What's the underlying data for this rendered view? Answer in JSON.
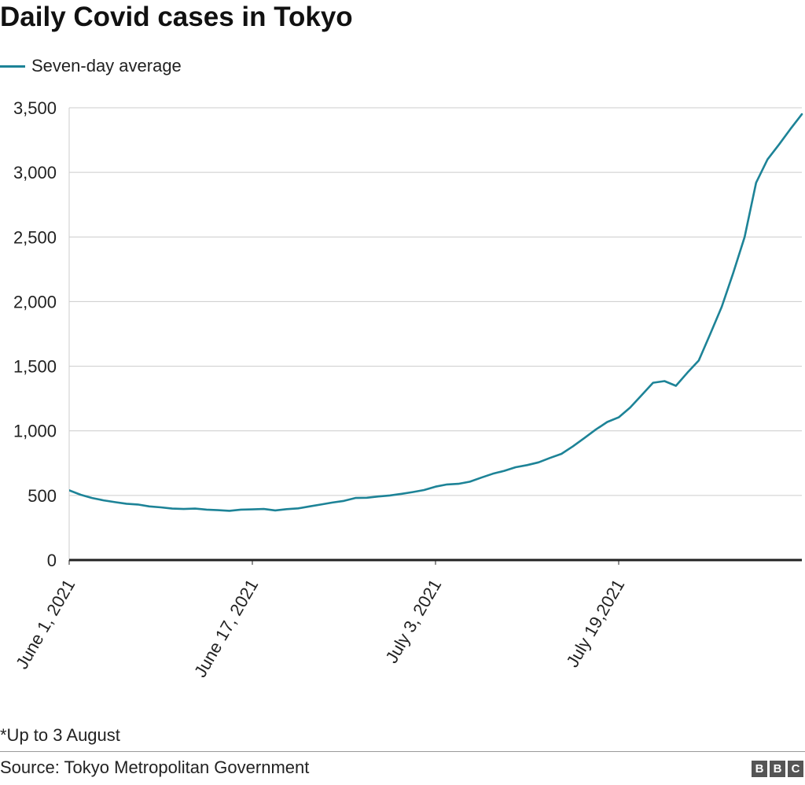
{
  "title": "Daily Covid cases in Tokyo",
  "legend": {
    "label": "Seven-day average",
    "color": "#1d8397"
  },
  "footnote": "*Up to 3 August",
  "source": "Source: Tokyo Metropolitan Government",
  "logo": [
    "B",
    "B",
    "C"
  ],
  "chart_data": {
    "type": "line",
    "title": "Daily Covid cases in Tokyo",
    "xlabel": "",
    "ylabel": "",
    "ylim": [
      0,
      3500
    ],
    "grid": true,
    "legend_position": "top-left",
    "y_ticks": [
      0,
      500,
      1000,
      1500,
      2000,
      2500,
      3000,
      3500
    ],
    "y_tick_labels": [
      "0",
      "500",
      "1,000",
      "1,500",
      "2,000",
      "2,500",
      "3,000",
      "3,500"
    ],
    "x_tick_labels": [
      {
        "day": 0,
        "label": "June 1, 2021"
      },
      {
        "day": 16,
        "label": "June 17, 2021"
      },
      {
        "day": 32,
        "label": "July 3, 2021"
      },
      {
        "day": 48,
        "label": "July 19,2021"
      }
    ],
    "series": [
      {
        "name": "Seven-day average",
        "color": "#1d8397",
        "x": [
          0,
          1,
          2,
          3,
          4,
          5,
          6,
          7,
          8,
          9,
          10,
          11,
          12,
          13,
          14,
          15,
          16,
          17,
          18,
          19,
          20,
          21,
          22,
          23,
          24,
          25,
          26,
          27,
          28,
          29,
          30,
          31,
          32,
          33,
          34,
          35,
          36,
          37,
          38,
          39,
          40,
          41,
          42,
          43,
          44,
          45,
          46,
          47,
          48,
          49,
          50,
          51,
          52,
          53,
          54,
          55,
          56,
          57,
          58,
          59,
          60,
          61,
          62,
          63,
          64
        ],
        "values": [
          540,
          505,
          480,
          462,
          448,
          436,
          430,
          415,
          408,
          398,
          395,
          398,
          390,
          386,
          381,
          390,
          392,
          395,
          384,
          394,
          400,
          415,
          430,
          445,
          458,
          480,
          482,
          492,
          500,
          512,
          526,
          542,
          568,
          585,
          590,
          606,
          638,
          668,
          690,
          718,
          735,
          756,
          790,
          822,
          880,
          944,
          1010,
          1068,
          1104,
          1180,
          1275,
          1372,
          1385,
          1348,
          1450,
          1545,
          1750,
          1960,
          2220,
          2500,
          2920,
          3100,
          3215,
          3335,
          3450
        ]
      }
    ]
  }
}
